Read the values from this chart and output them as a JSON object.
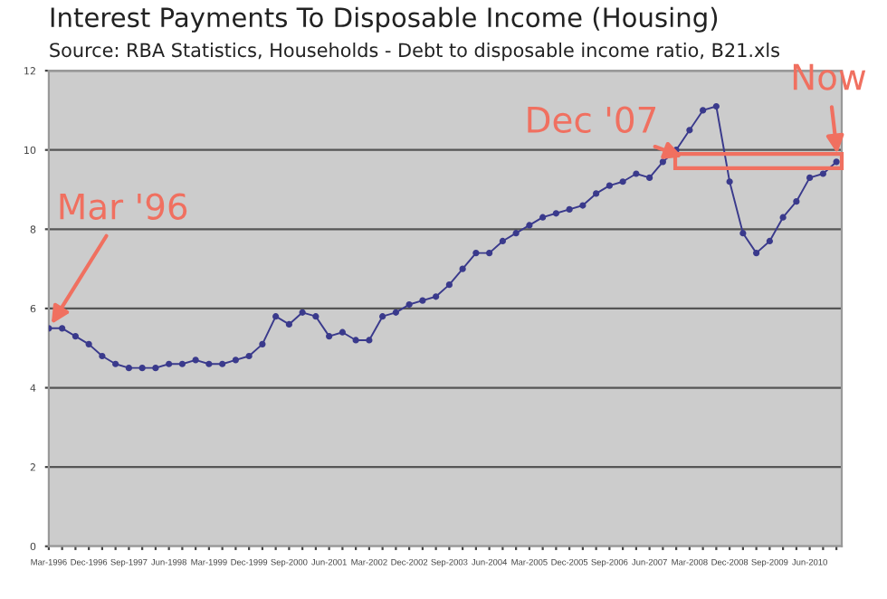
{
  "chart_data": {
    "type": "line",
    "title": "Interest Payments To Disposable Income (Housing)",
    "subtitle": "Source: RBA Statistics, Households - Debt to disposable income ratio, B21.xls",
    "categories": [
      "Mar-1996",
      null,
      null,
      "Dec-1996",
      null,
      null,
      "Sep-1997",
      null,
      null,
      "Jun-1998",
      null,
      null,
      "Mar-1999",
      null,
      null,
      "Dec-1999",
      null,
      null,
      "Sep-2000",
      null,
      null,
      "Jun-2001",
      null,
      null,
      "Mar-2002",
      null,
      null,
      "Dec-2002",
      null,
      null,
      "Sep-2003",
      null,
      null,
      "Jun-2004",
      null,
      null,
      "Mar-2005",
      null,
      null,
      "Dec-2005",
      null,
      null,
      "Sep-2006",
      null,
      null,
      "Jun-2007",
      null,
      null,
      "Mar-2008",
      null,
      null,
      "Dec-2008",
      null,
      null,
      "Sep-2009",
      null,
      null,
      "Jun-2010",
      null,
      null
    ],
    "series": [
      {
        "color": "#3a3a8c",
        "values": [
          5.5,
          5.5,
          5.3,
          5.1,
          4.8,
          4.6,
          4.5,
          4.5,
          4.5,
          4.6,
          4.6,
          4.7,
          4.6,
          4.6,
          4.7,
          4.8,
          5.1,
          5.8,
          5.6,
          5.9,
          5.8,
          5.3,
          5.4,
          5.2,
          5.2,
          5.8,
          5.9,
          6.1,
          6.2,
          6.3,
          6.6,
          7.0,
          7.4,
          7.4,
          7.7,
          7.9,
          8.1,
          8.3,
          8.4,
          8.5,
          8.6,
          8.9,
          9.1,
          9.2,
          9.4,
          9.3,
          9.7,
          10.0,
          10.5,
          11.0,
          11.1,
          9.2,
          7.9,
          7.4,
          7.7,
          8.3,
          8.7,
          9.3,
          9.4,
          9.7
        ]
      }
    ],
    "ylim": [
      0,
      12
    ],
    "yticks": [
      0,
      2,
      4,
      6,
      8,
      10,
      12
    ],
    "grid": "y",
    "marker": "circle",
    "line_style": "solid",
    "annotations": [
      {
        "text": "Mar '96",
        "x": "Mar-1996",
        "y": 5.5
      },
      "Dec '07",
      "Now"
    ]
  }
}
